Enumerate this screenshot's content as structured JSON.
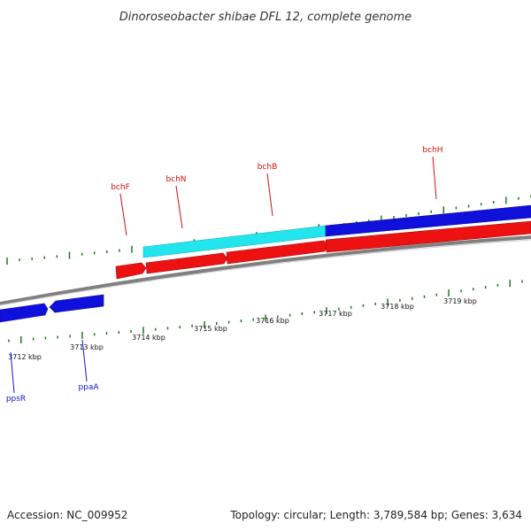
{
  "title": "Dinoroseobacter shibae DFL 12, complete genome",
  "footer": {
    "accession": "Accession: NC_009952",
    "summary": "Topology: circular; Length: 3,789,584 bp; Genes: 3,634"
  },
  "colors": {
    "forward_strand": "#1010dd",
    "reverse_strand": "#ee1111",
    "highlight": "#22e5ee",
    "backbone": "#808080",
    "tick": "#1a7a1a",
    "label_forward": "#1010dd",
    "label_reverse": "#cc1111"
  },
  "scale": {
    "unit": "kbp",
    "labels": [
      "3712 kbp",
      "3713 kbp",
      "3714 kbp",
      "3715 kbp",
      "3716 kbp",
      "3717 kbp",
      "3718 kbp",
      "3719 kbp"
    ]
  },
  "genes": [
    {
      "name": "ppsR",
      "strand": "forward",
      "color": "forward_strand"
    },
    {
      "name": "ppaA",
      "strand": "forward",
      "color": "forward_strand"
    },
    {
      "name": "bchF",
      "strand": "reverse",
      "color": "reverse_strand"
    },
    {
      "name": "bchN",
      "strand": "reverse",
      "color": "reverse_strand"
    },
    {
      "name": "bchB",
      "strand": "reverse",
      "color": "reverse_strand"
    },
    {
      "name": "bchH",
      "strand": "reverse",
      "color": "reverse_strand"
    }
  ]
}
